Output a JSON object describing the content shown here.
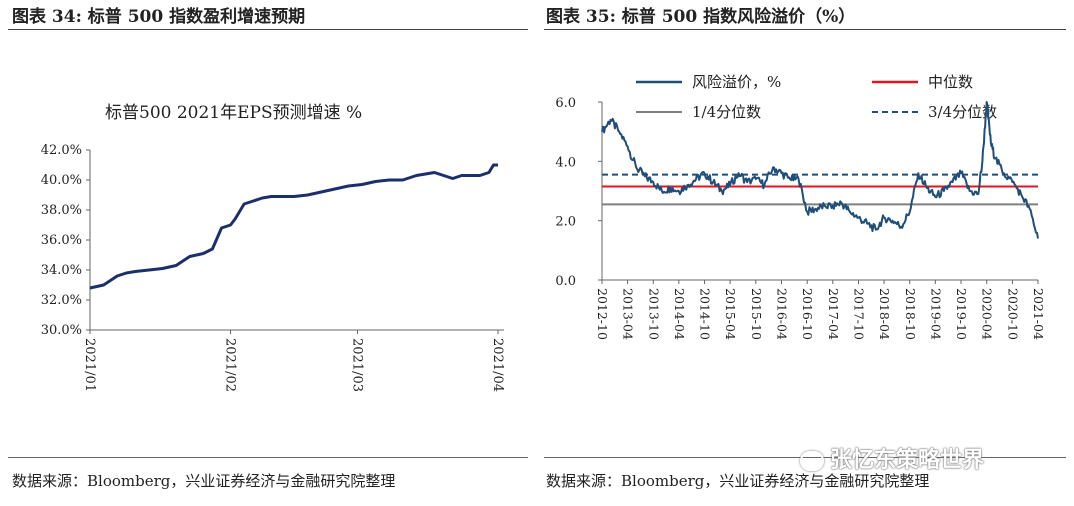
{
  "figure34": {
    "title": "图表 34:  标普 500 指数盈利增速预期",
    "source": "数据来源：Bloomberg，兴业证券经济与金融研究院整理"
  },
  "figure35": {
    "title": "图表 35:  标普 500 指数风险溢价（%）",
    "source": "数据来源：Bloomberg，兴业证券经济与金融研究院整理"
  },
  "watermark": "张忆东策略世界",
  "chart_data": [
    {
      "type": "line",
      "title": "标普500  2021年EPS预测增速     %",
      "xlabel": "",
      "ylabel": "",
      "ylim": [
        30,
        42
      ],
      "yticks": [
        "30.0%",
        "32.0%",
        "34.0%",
        "36.0%",
        "38.0%",
        "40.0%",
        "42.0%"
      ],
      "xticks": [
        "2021/01",
        "2021/02",
        "2021/03",
        "2021/04"
      ],
      "x_range": [
        "2021-01-01",
        "2021-04-01"
      ],
      "grid": false,
      "series": [
        {
          "color": "#1b2f6b",
          "x": [
            "2021-01-01",
            "2021-01-04",
            "2021-01-07",
            "2021-01-09",
            "2021-01-11",
            "2021-01-14",
            "2021-01-17",
            "2021-01-20",
            "2021-01-23",
            "2021-01-26",
            "2021-01-28",
            "2021-01-30",
            "2021-02-01",
            "2021-02-02",
            "2021-02-04",
            "2021-02-06",
            "2021-02-08",
            "2021-02-10",
            "2021-02-12",
            "2021-02-15",
            "2021-02-18",
            "2021-02-21",
            "2021-02-24",
            "2021-02-27",
            "2021-03-02",
            "2021-03-05",
            "2021-03-08",
            "2021-03-11",
            "2021-03-14",
            "2021-03-16",
            "2021-03-18",
            "2021-03-20",
            "2021-03-22",
            "2021-03-24",
            "2021-03-26",
            "2021-03-28",
            "2021-03-30",
            "2021-03-31",
            "2021-04-01"
          ],
          "values": [
            32.8,
            33.0,
            33.6,
            33.8,
            33.9,
            34.0,
            34.1,
            34.3,
            34.9,
            35.1,
            35.4,
            36.8,
            37.0,
            37.4,
            38.4,
            38.6,
            38.8,
            38.9,
            38.9,
            38.9,
            39.0,
            39.2,
            39.4,
            39.6,
            39.7,
            39.9,
            40.0,
            40.0,
            40.3,
            40.4,
            40.5,
            40.3,
            40.1,
            40.3,
            40.3,
            40.3,
            40.5,
            41.0,
            41.0
          ]
        }
      ]
    },
    {
      "type": "line",
      "title": "",
      "xlabel": "",
      "ylabel": "",
      "ylim": [
        0,
        6
      ],
      "yticks": [
        "0.0",
        "2.0",
        "4.0",
        "6.0"
      ],
      "xticks": [
        "2012-10",
        "2013-04",
        "2013-10",
        "2014-04",
        "2014-10",
        "2015-04",
        "2015-10",
        "2016-04",
        "2016-10",
        "2017-04",
        "2017-10",
        "2018-04",
        "2018-10",
        "2019-04",
        "2019-10",
        "2020-04",
        "2020-10",
        "2021-04"
      ],
      "x_range": [
        "2012-10-01",
        "2021-04-01"
      ],
      "legend_position": "top",
      "grid": false,
      "series": [
        {
          "name": "风险溢价，%",
          "color": "#1f4e79",
          "dates": [
            "2012-10",
            "2012-12",
            "2013-02",
            "2013-04",
            "2013-06",
            "2013-08",
            "2013-10",
            "2013-12",
            "2014-02",
            "2014-04",
            "2014-06",
            "2014-08",
            "2014-10",
            "2014-12",
            "2015-02",
            "2015-04",
            "2015-06",
            "2015-08",
            "2015-10",
            "2015-12",
            "2016-02",
            "2016-04",
            "2016-06",
            "2016-08",
            "2016-10",
            "2016-12",
            "2017-02",
            "2017-04",
            "2017-06",
            "2017-08",
            "2017-10",
            "2017-12",
            "2018-02",
            "2018-04",
            "2018-06",
            "2018-08",
            "2018-10",
            "2018-12",
            "2019-02",
            "2019-04",
            "2019-06",
            "2019-08",
            "2019-10",
            "2019-12",
            "2020-02",
            "2020-03",
            "2020-04",
            "2020-05",
            "2020-06",
            "2020-08",
            "2020-10",
            "2020-12",
            "2021-02",
            "2021-04"
          ],
          "values": [
            5.0,
            5.4,
            5.0,
            4.5,
            3.8,
            3.5,
            3.3,
            3.0,
            3.1,
            3.0,
            3.2,
            3.4,
            3.6,
            3.3,
            3.0,
            3.2,
            3.6,
            3.3,
            3.4,
            3.2,
            3.8,
            3.6,
            3.4,
            3.4,
            2.3,
            2.4,
            2.5,
            2.5,
            2.6,
            2.3,
            2.1,
            1.9,
            1.7,
            2.1,
            2.0,
            1.8,
            2.3,
            3.6,
            3.1,
            2.8,
            3.0,
            3.3,
            3.6,
            3.0,
            2.9,
            4.0,
            6.0,
            4.6,
            4.1,
            3.6,
            3.3,
            2.9,
            2.4,
            1.4
          ]
        },
        {
          "name": "中位数",
          "color": "#e8121c",
          "level": 3.15
        },
        {
          "name": "1/4分位数",
          "color": "#7f7f7f",
          "level": 2.55
        },
        {
          "name": "3/4分位数",
          "color": "#1f4e79",
          "level": 3.55,
          "dashed": true
        }
      ]
    }
  ]
}
